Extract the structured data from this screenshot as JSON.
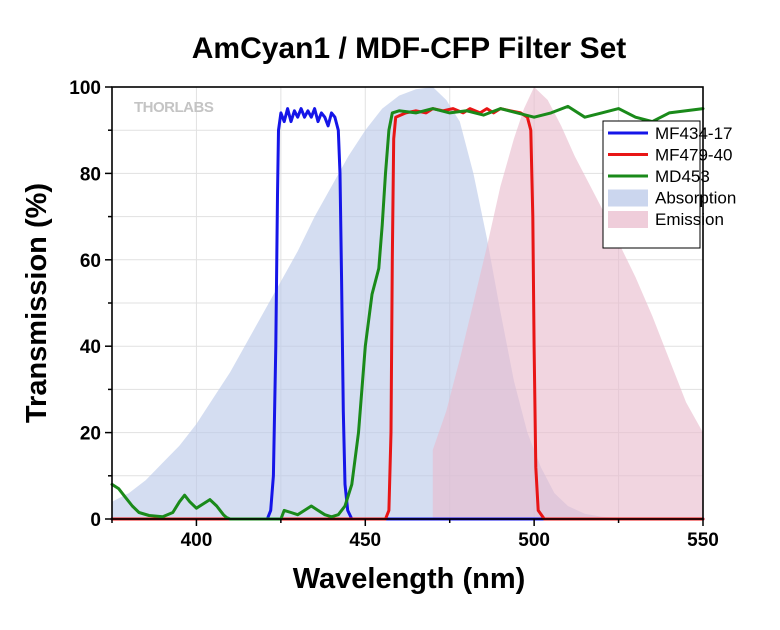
{
  "chart_data": {
    "type": "line",
    "title": "AmCyan1 / MDF-CFP Filter Set",
    "xlabel": "Wavelength (nm)",
    "ylabel": "Transmission (%)",
    "xlim": [
      375,
      550
    ],
    "ylim": [
      0,
      100
    ],
    "xticks": [
      400,
      450,
      500,
      550
    ],
    "yticks": [
      0,
      20,
      40,
      60,
      80,
      100
    ],
    "grid": true,
    "legend_position": "top-right",
    "watermark": "THORLABS",
    "series": [
      {
        "name": "MF434-17",
        "color": "#1515e8",
        "style": "line",
        "points": [
          [
            375,
            0
          ],
          [
            421,
            0
          ],
          [
            422,
            2
          ],
          [
            422.8,
            10
          ],
          [
            423.5,
            40
          ],
          [
            424,
            75
          ],
          [
            424.3,
            90
          ],
          [
            425,
            94
          ],
          [
            426,
            92
          ],
          [
            427,
            95
          ],
          [
            428,
            92
          ],
          [
            429,
            94.5
          ],
          [
            430,
            93
          ],
          [
            431,
            95
          ],
          [
            432,
            93
          ],
          [
            433,
            94.5
          ],
          [
            434,
            93
          ],
          [
            435,
            95
          ],
          [
            436,
            92
          ],
          [
            437,
            94
          ],
          [
            438,
            93
          ],
          [
            439,
            91
          ],
          [
            440,
            94
          ],
          [
            441,
            93
          ],
          [
            442,
            90
          ],
          [
            442.5,
            80
          ],
          [
            443,
            55
          ],
          [
            443.5,
            25
          ],
          [
            444,
            8
          ],
          [
            444.8,
            2
          ],
          [
            446,
            0
          ],
          [
            550,
            0
          ]
        ]
      },
      {
        "name": "MF479-40",
        "color": "#e81515",
        "style": "line",
        "points": [
          [
            375,
            0
          ],
          [
            456,
            0
          ],
          [
            457,
            2
          ],
          [
            457.6,
            20
          ],
          [
            458,
            60
          ],
          [
            458.4,
            88
          ],
          [
            459,
            93
          ],
          [
            462,
            94
          ],
          [
            465,
            94.5
          ],
          [
            468,
            94
          ],
          [
            470,
            95
          ],
          [
            473,
            94.5
          ],
          [
            476,
            95
          ],
          [
            479,
            94
          ],
          [
            481,
            95
          ],
          [
            484,
            94
          ],
          [
            486,
            95
          ],
          [
            488,
            94
          ],
          [
            490,
            95
          ],
          [
            493,
            94.5
          ],
          [
            496,
            94
          ],
          [
            498,
            93
          ],
          [
            499,
            90
          ],
          [
            499.6,
            70
          ],
          [
            500,
            40
          ],
          [
            500.5,
            12
          ],
          [
            501.2,
            2
          ],
          [
            503,
            0
          ],
          [
            550,
            0
          ]
        ]
      },
      {
        "name": "MD453",
        "color": "#1a8a1a",
        "style": "line",
        "points": [
          [
            375,
            8
          ],
          [
            377,
            7
          ],
          [
            379,
            5
          ],
          [
            381,
            3
          ],
          [
            383,
            1.5
          ],
          [
            386,
            0.8
          ],
          [
            390,
            0.5
          ],
          [
            393,
            1.5
          ],
          [
            395,
            4
          ],
          [
            396.5,
            5.5
          ],
          [
            398,
            4
          ],
          [
            400,
            2.5
          ],
          [
            402,
            3.5
          ],
          [
            404,
            4.5
          ],
          [
            406,
            3
          ],
          [
            408,
            1
          ],
          [
            409,
            0.3
          ],
          [
            410,
            0
          ],
          [
            425,
            0
          ],
          [
            426,
            2
          ],
          [
            428,
            1.5
          ],
          [
            430,
            1
          ],
          [
            432,
            2
          ],
          [
            434,
            3
          ],
          [
            436,
            2
          ],
          [
            438,
            1
          ],
          [
            440,
            0.5
          ],
          [
            442,
            1
          ],
          [
            444,
            3
          ],
          [
            446,
            8
          ],
          [
            448,
            20
          ],
          [
            450,
            40
          ],
          [
            452,
            52
          ],
          [
            454,
            58
          ],
          [
            455,
            68
          ],
          [
            456,
            80
          ],
          [
            457,
            90
          ],
          [
            458,
            94
          ],
          [
            460,
            94.5
          ],
          [
            465,
            94
          ],
          [
            470,
            95
          ],
          [
            475,
            94
          ],
          [
            480,
            94.5
          ],
          [
            485,
            93.5
          ],
          [
            490,
            95
          ],
          [
            495,
            94
          ],
          [
            500,
            93
          ],
          [
            505,
            94
          ],
          [
            510,
            95.5
          ],
          [
            515,
            93
          ],
          [
            520,
            94
          ],
          [
            525,
            95
          ],
          [
            530,
            93
          ],
          [
            535,
            92
          ],
          [
            540,
            94
          ],
          [
            545,
            94.5
          ],
          [
            550,
            95
          ]
        ]
      },
      {
        "name": "Absorption",
        "color": "#b9c8e8",
        "style": "area",
        "points": [
          [
            375,
            4
          ],
          [
            380,
            6
          ],
          [
            385,
            9
          ],
          [
            390,
            13
          ],
          [
            395,
            17
          ],
          [
            400,
            22
          ],
          [
            405,
            28
          ],
          [
            410,
            34
          ],
          [
            415,
            41
          ],
          [
            420,
            48
          ],
          [
            425,
            55
          ],
          [
            430,
            62
          ],
          [
            435,
            70
          ],
          [
            440,
            77
          ],
          [
            445,
            84
          ],
          [
            450,
            90
          ],
          [
            455,
            95
          ],
          [
            460,
            98
          ],
          [
            465,
            99.5
          ],
          [
            470,
            100
          ],
          [
            474,
            97
          ],
          [
            478,
            92
          ],
          [
            482,
            80
          ],
          [
            486,
            65
          ],
          [
            490,
            48
          ],
          [
            494,
            32
          ],
          [
            498,
            20
          ],
          [
            502,
            12
          ],
          [
            506,
            6
          ],
          [
            510,
            3
          ],
          [
            515,
            1.2
          ],
          [
            520,
            0.5
          ],
          [
            530,
            0
          ],
          [
            550,
            0
          ]
        ]
      },
      {
        "name": "Emission",
        "color": "#e9bccd",
        "style": "area",
        "points": [
          [
            470,
            0
          ],
          [
            470,
            16
          ],
          [
            474,
            25
          ],
          [
            478,
            37
          ],
          [
            482,
            50
          ],
          [
            486,
            63
          ],
          [
            490,
            77
          ],
          [
            494,
            88
          ],
          [
            497,
            95
          ],
          [
            500,
            100
          ],
          [
            504,
            97
          ],
          [
            508,
            91
          ],
          [
            512,
            84
          ],
          [
            516,
            78
          ],
          [
            520,
            72
          ],
          [
            525,
            64
          ],
          [
            530,
            56
          ],
          [
            535,
            47
          ],
          [
            540,
            37
          ],
          [
            545,
            27
          ],
          [
            550,
            20
          ],
          [
            550,
            0
          ]
        ]
      }
    ]
  }
}
